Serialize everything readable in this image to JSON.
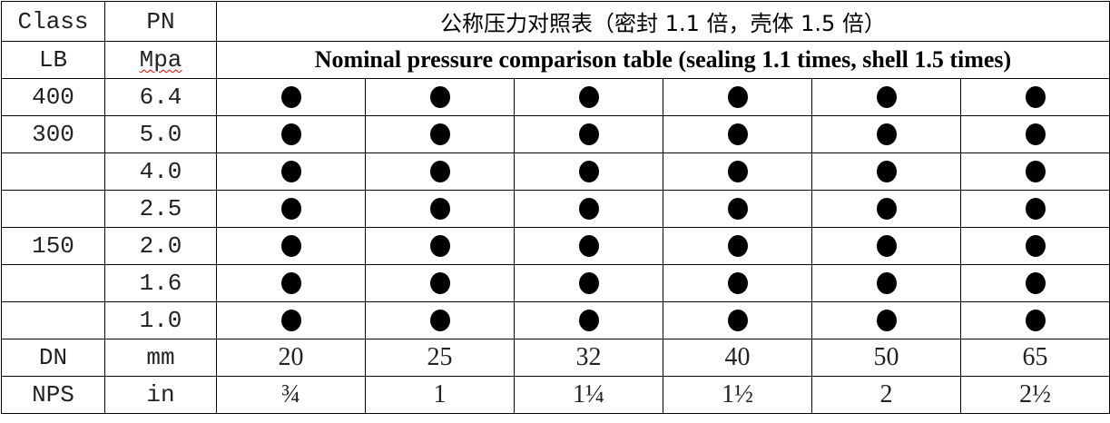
{
  "header": {
    "class_label": "Class",
    "lb_label": "LB",
    "pn_label": "PN",
    "mpa_label": "Mpa",
    "title_cn": "公称压力对照表（密封 1.1 倍，壳体 1.5 倍）",
    "title_en": "Nominal pressure comparison table (sealing 1.1 times, shell 1.5 times)"
  },
  "rows": [
    {
      "class": "400",
      "pn": "6.4",
      "marks": [
        true,
        true,
        true,
        true,
        true,
        true
      ]
    },
    {
      "class": "300",
      "pn": "5.0",
      "marks": [
        true,
        true,
        true,
        true,
        true,
        true
      ]
    },
    {
      "class": "",
      "pn": "4.0",
      "marks": [
        true,
        true,
        true,
        true,
        true,
        true
      ]
    },
    {
      "class": "",
      "pn": "2.5",
      "marks": [
        true,
        true,
        true,
        true,
        true,
        true
      ]
    },
    {
      "class": "150",
      "pn": "2.0",
      "marks": [
        true,
        true,
        true,
        true,
        true,
        true
      ]
    },
    {
      "class": "",
      "pn": "1.6",
      "marks": [
        true,
        true,
        true,
        true,
        true,
        true
      ]
    },
    {
      "class": "",
      "pn": "1.0",
      "marks": [
        true,
        true,
        true,
        true,
        true,
        true
      ]
    }
  ],
  "dn_row": {
    "label": "DN",
    "unit": "mm",
    "values": [
      "20",
      "25",
      "32",
      "40",
      "50",
      "65"
    ]
  },
  "nps_row": {
    "label": "NPS",
    "unit": "in",
    "values": [
      "¾",
      "1",
      "1¼",
      "1½",
      "2",
      "2½"
    ]
  },
  "mark_icon": "filled-circle"
}
